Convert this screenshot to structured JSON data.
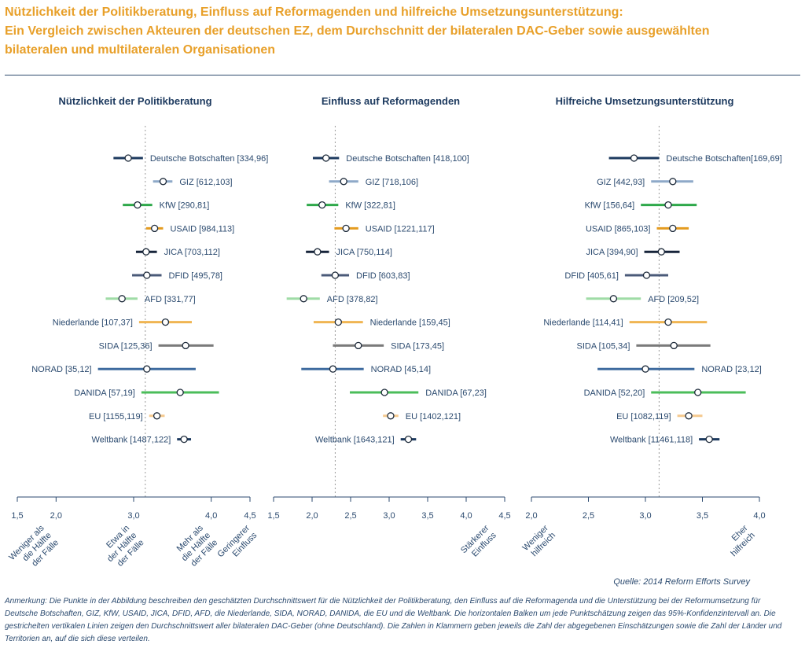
{
  "title_lines": [
    "Nützlichkeit der Politikberatung, Einfluss auf Reformagenden und hilfreiche Umsetzungsunterstützung:",
    "Ein Vergleich zwischen Akteuren der deutschen EZ, dem Durchschnitt der bilateralen DAC-Geber sowie ausgewählten",
    "bilateralen und multilateralen Organisationen"
  ],
  "source": "Quelle: 2014 Reform Efforts Survey",
  "note": "Anmerkung: Die Punkte in der Abbildung beschreiben den geschätzten Durchschnittswert für die Nützlichkeit der Politikberatung, den Einfluss auf die Reformagenda und die Unterstützung bei der Reformumsetzung für Deutsche Botschaften, GIZ, KfW, USAID, JICA, DFID, AFD, die Niederlande, SIDA, NORAD, DANIDA, die EU und die Weltbank. Die horizontalen Balken um jede Punktschätzung zeigen das 95%-Konfidenzintervall an. Die gestrichelten vertikalen Linien zeigen den Durchschnittswert aller bilateralen DAC-Geber (ohne Deutschland). Die Zahlen in Klammern geben jeweils die Zahl der abgegebenen Einschätzungen sowie die Zahl der Länder und Territorien an, auf die sich diese verteilen.",
  "colors": {
    "Deutsche Botschaften": "#1d3a5f",
    "GIZ": "#8ea9c8",
    "KfW": "#2ea84a",
    "USAID": "#e49b1f",
    "JICA": "#16243a",
    "DFID": "#4a5a78",
    "AFD": "#9fdca6",
    "Niederlande": "#f0b552",
    "SIDA": "#7a7a7a",
    "NORAD": "#3d6a9e",
    "DANIDA": "#4bbd5a",
    "EU": "#f5c98e",
    "Weltbank": "#1d3a5f"
  },
  "chart_data": [
    {
      "type": "scatter",
      "title": "Nützlichkeit der Politikberatung",
      "xlim": [
        1.5,
        4.5
      ],
      "ticks": [
        1.5,
        2.0,
        3.0,
        4.0,
        4.5
      ],
      "tick_labels": [
        "1,5",
        "2,0",
        "3,0",
        "4,0",
        "4,5"
      ],
      "reference_line": 3.15,
      "axis_notes": [
        {
          "x": 1.85,
          "lines": [
            "Weniger als",
            "die Hälfte",
            "der Fälle"
          ]
        },
        {
          "x": 2.95,
          "lines": [
            "Etwa in",
            "der Hälfte",
            "der Fälle"
          ]
        },
        {
          "x": 3.9,
          "lines": [
            "Mehr als",
            "die Hälfte",
            "der Fälle"
          ]
        },
        {
          "x": 4.5,
          "lines": [
            "Geringerer",
            "Einfluss"
          ]
        }
      ],
      "series": [
        {
          "name": "Deutsche Botschaften",
          "label": "Deutsche Botschaften [334,96]",
          "mean": 2.93,
          "low": 2.74,
          "high": 3.12,
          "side": "right"
        },
        {
          "name": "GIZ",
          "label": "GIZ [612,103]",
          "mean": 3.38,
          "low": 3.25,
          "high": 3.5,
          "side": "right"
        },
        {
          "name": "KfW",
          "label": "KfW [290,81]",
          "mean": 3.05,
          "low": 2.86,
          "high": 3.24,
          "side": "right"
        },
        {
          "name": "USAID",
          "label": "USAID [984,113]",
          "mean": 3.27,
          "low": 3.16,
          "high": 3.38,
          "side": "right"
        },
        {
          "name": "JICA",
          "label": "JICA [703,112]",
          "mean": 3.16,
          "low": 3.03,
          "high": 3.3,
          "side": "right"
        },
        {
          "name": "DFID",
          "label": "DFID [495,78]",
          "mean": 3.17,
          "low": 2.98,
          "high": 3.36,
          "side": "right"
        },
        {
          "name": "AFD",
          "label": "AFD [331,77]",
          "mean": 2.85,
          "low": 2.64,
          "high": 3.05,
          "side": "right"
        },
        {
          "name": "Niederlande",
          "label": "Niederlande [107,37]",
          "mean": 3.41,
          "low": 3.07,
          "high": 3.75,
          "side": "left"
        },
        {
          "name": "SIDA",
          "label": "SIDA [125,36]",
          "mean": 3.67,
          "low": 3.32,
          "high": 4.03,
          "side": "left"
        },
        {
          "name": "NORAD",
          "label": "NORAD [35,12]",
          "mean": 3.17,
          "low": 2.54,
          "high": 3.8,
          "side": "left"
        },
        {
          "name": "DANIDA",
          "label": "DANIDA [57,19]",
          "mean": 3.6,
          "low": 3.1,
          "high": 4.1,
          "side": "left"
        },
        {
          "name": "EU",
          "label": "EU [1155,119]",
          "mean": 3.3,
          "low": 3.2,
          "high": 3.4,
          "side": "left"
        },
        {
          "name": "Weltbank",
          "label": "Weltbank [1487,122]",
          "mean": 3.65,
          "low": 3.56,
          "high": 3.74,
          "side": "left"
        }
      ]
    },
    {
      "type": "scatter",
      "title": "Einfluss auf Reformagenden",
      "xlim": [
        1.5,
        4.5
      ],
      "ticks": [
        1.5,
        2.0,
        2.5,
        3.0,
        3.5,
        4.0,
        4.5
      ],
      "tick_labels": [
        "1,5",
        "2,0",
        "2,5",
        "3,0",
        "3,5",
        "4,0",
        "4,5"
      ],
      "reference_line": 2.3,
      "axis_notes": [
        {
          "x": 4.3,
          "lines": [
            "Stärkerer",
            "Einfluss"
          ]
        }
      ],
      "series": [
        {
          "name": "Deutsche Botschaften",
          "label": "Deutsche Botschaften [418,100]",
          "mean": 2.18,
          "low": 2.01,
          "high": 2.35,
          "side": "right"
        },
        {
          "name": "GIZ",
          "label": "GIZ [718,106]",
          "mean": 2.41,
          "low": 2.22,
          "high": 2.6,
          "side": "right"
        },
        {
          "name": "KfW",
          "label": "KfW [322,81]",
          "mean": 2.13,
          "low": 1.93,
          "high": 2.34,
          "side": "right"
        },
        {
          "name": "USAID",
          "label": "USAID [1221,117]",
          "mean": 2.44,
          "low": 2.29,
          "high": 2.6,
          "side": "right"
        },
        {
          "name": "JICA",
          "label": "JICA [750,114]",
          "mean": 2.07,
          "low": 1.92,
          "high": 2.22,
          "side": "right"
        },
        {
          "name": "DFID",
          "label": "DFID [603,83]",
          "mean": 2.3,
          "low": 2.12,
          "high": 2.48,
          "side": "right"
        },
        {
          "name": "AFD",
          "label": "AFD [378,82]",
          "mean": 1.89,
          "low": 1.67,
          "high": 2.1,
          "side": "right"
        },
        {
          "name": "Niederlande",
          "label": "Niederlande [159,45]",
          "mean": 2.34,
          "low": 2.02,
          "high": 2.66,
          "side": "right"
        },
        {
          "name": "SIDA",
          "label": "SIDA [173,45]",
          "mean": 2.6,
          "low": 2.27,
          "high": 2.93,
          "side": "right"
        },
        {
          "name": "NORAD",
          "label": "NORAD [45,14]",
          "mean": 2.27,
          "low": 1.86,
          "high": 2.67,
          "side": "right"
        },
        {
          "name": "DANIDA",
          "label": "DANIDA [67,23]",
          "mean": 2.94,
          "low": 2.49,
          "high": 3.38,
          "side": "right"
        },
        {
          "name": "EU",
          "label": "EU [1402,121]",
          "mean": 3.02,
          "low": 2.92,
          "high": 3.12,
          "side": "right"
        },
        {
          "name": "Weltbank",
          "label": "Weltbank [1643,121]",
          "mean": 3.25,
          "low": 3.15,
          "high": 3.35,
          "side": "left"
        }
      ]
    },
    {
      "type": "scatter",
      "title": "Hilfreiche Umsetzungsunterstützung",
      "xlim": [
        2.0,
        4.0
      ],
      "ticks": [
        2.0,
        2.5,
        3.0,
        3.5,
        4.0
      ],
      "tick_labels": [
        "2,0",
        "2,5",
        "3,0",
        "3,5",
        "4,0"
      ],
      "reference_line": 3.12,
      "axis_notes": [
        {
          "x": 2.15,
          "lines": [
            "Weniger",
            "hilfreich"
          ]
        },
        {
          "x": 3.9,
          "lines": [
            "Eher",
            "hilfreich"
          ]
        }
      ],
      "series": [
        {
          "name": "Deutsche Botschaften",
          "label": "Deutsche Botschaften[169,69]",
          "mean": 2.9,
          "low": 2.68,
          "high": 3.12,
          "side": "right"
        },
        {
          "name": "GIZ",
          "label": "GIZ [442,93]",
          "mean": 3.24,
          "low": 3.05,
          "high": 3.42,
          "side": "left"
        },
        {
          "name": "KfW",
          "label": "KfW [156,64]",
          "mean": 3.2,
          "low": 2.96,
          "high": 3.45,
          "side": "left"
        },
        {
          "name": "USAID",
          "label": "USAID [865,103]",
          "mean": 3.24,
          "low": 3.1,
          "high": 3.38,
          "side": "left"
        },
        {
          "name": "JICA",
          "label": "JICA [394,90]",
          "mean": 3.14,
          "low": 2.99,
          "high": 3.3,
          "side": "left"
        },
        {
          "name": "DFID",
          "label": "DFID [405,61]",
          "mean": 3.01,
          "low": 2.82,
          "high": 3.2,
          "side": "left"
        },
        {
          "name": "AFD",
          "label": "AFD [209,52]",
          "mean": 2.72,
          "low": 2.48,
          "high": 2.96,
          "side": "right"
        },
        {
          "name": "Niederlande",
          "label": "Niederlande [114,41]",
          "mean": 3.2,
          "low": 2.86,
          "high": 3.54,
          "side": "left"
        },
        {
          "name": "SIDA",
          "label": "SIDA [105,34]",
          "mean": 3.25,
          "low": 2.92,
          "high": 3.57,
          "side": "left"
        },
        {
          "name": "NORAD",
          "label": "NORAD [23,12]",
          "mean": 3.0,
          "low": 2.58,
          "high": 3.43,
          "side": "right"
        },
        {
          "name": "DANIDA",
          "label": "DANIDA [52,20]",
          "mean": 3.46,
          "low": 3.05,
          "high": 3.88,
          "side": "left"
        },
        {
          "name": "EU",
          "label": "EU [1082,119]",
          "mean": 3.38,
          "low": 3.28,
          "high": 3.5,
          "side": "left"
        },
        {
          "name": "Weltbank",
          "label": "Weltbank [11461,118]",
          "mean": 3.56,
          "low": 3.47,
          "high": 3.65,
          "side": "left"
        }
      ]
    }
  ]
}
